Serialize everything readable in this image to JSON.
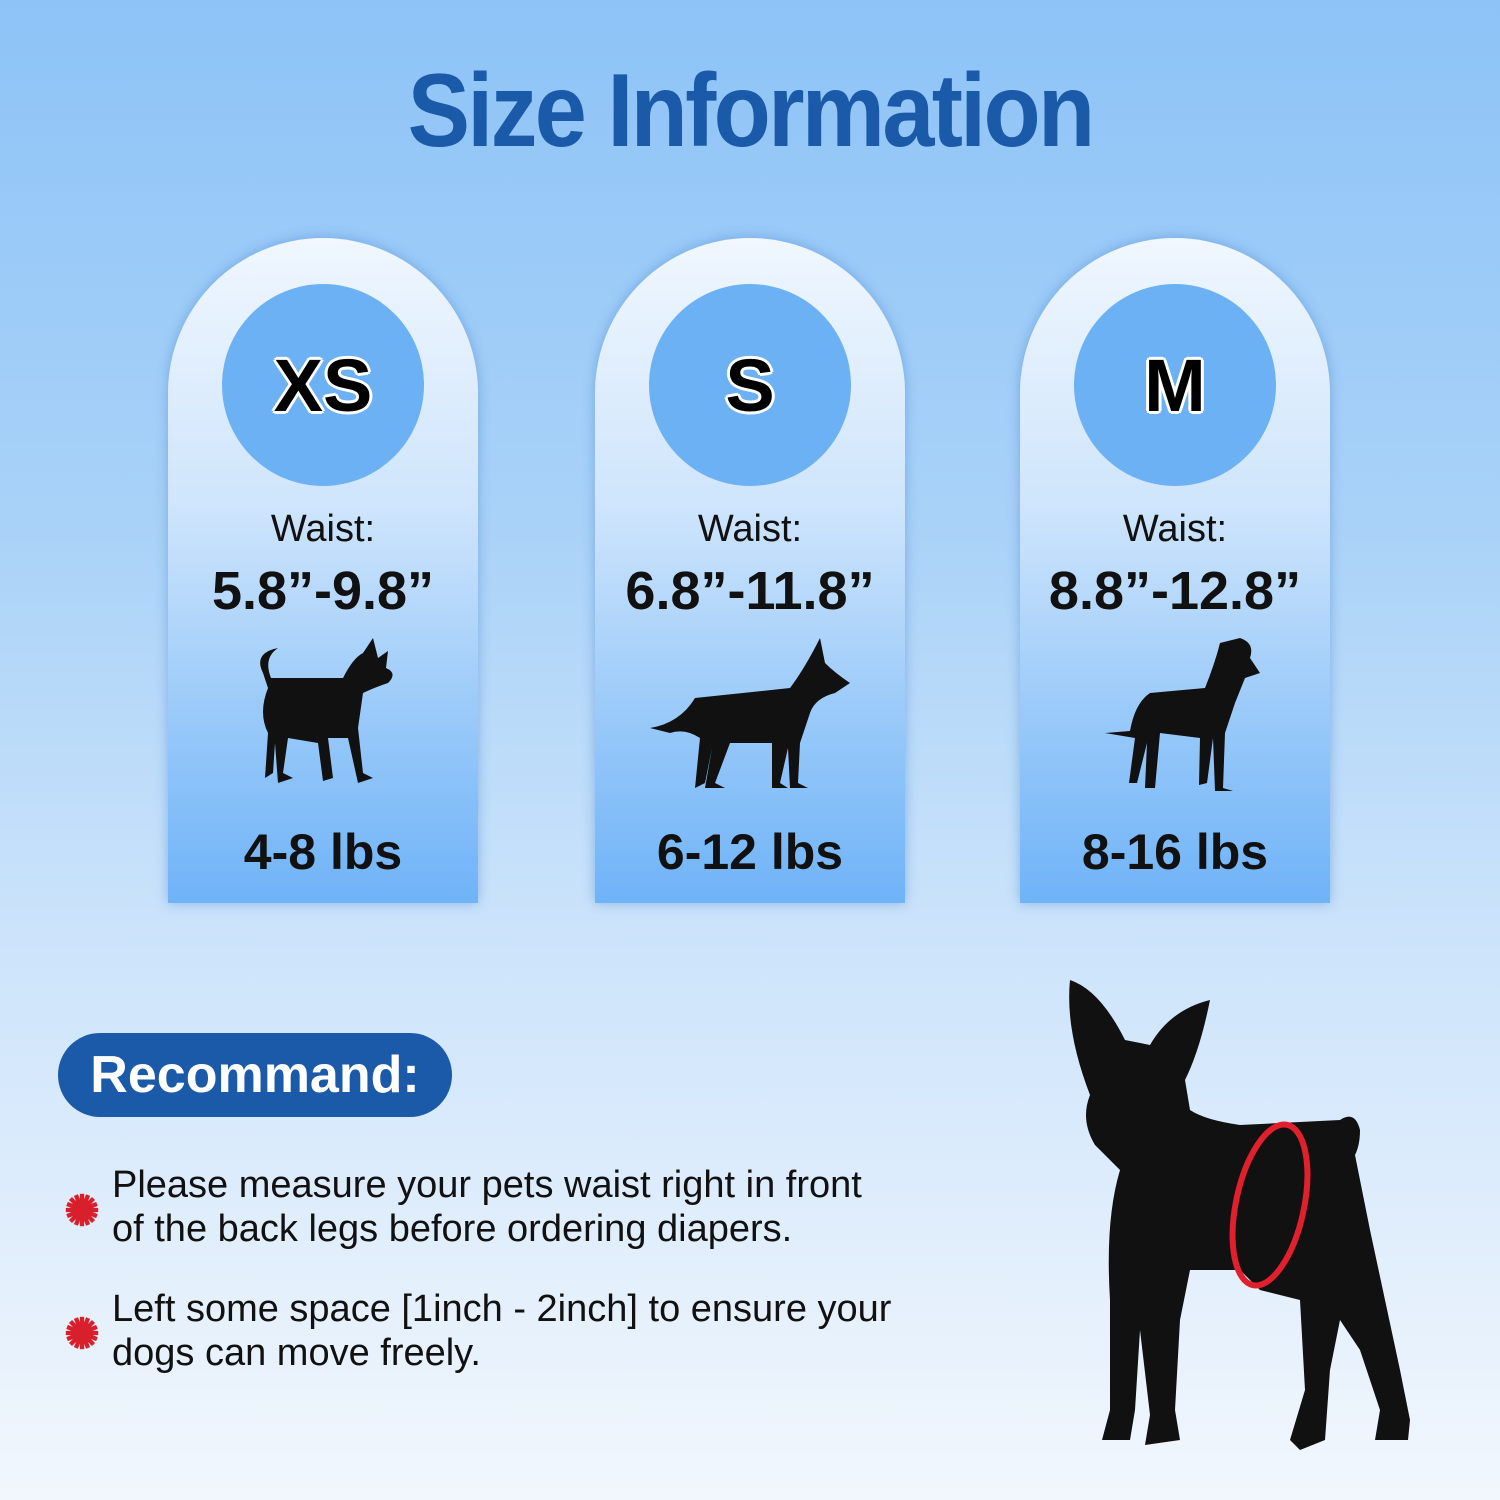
{
  "title": "Size Information",
  "sizes": [
    {
      "label": "XS",
      "waist_label": "Waist:",
      "waist": "5.8”-9.8”",
      "weight": "4-8 lbs"
    },
    {
      "label": "S",
      "waist_label": "Waist:",
      "waist": "6.8”-11.8”",
      "weight": "6-12 lbs"
    },
    {
      "label": "M",
      "waist_label": "Waist:",
      "waist": "8.8”-12.8”",
      "weight": "8-16 lbs"
    }
  ],
  "recommend": {
    "heading": "Recommand:",
    "items": [
      {
        "line1": "Please measure your pets waist right in front",
        "line2": "of the back legs before ordering diapers."
      },
      {
        "line1": "Left some space [1inch - 2inch] to ensure your",
        "line2": "dogs can move freely."
      }
    ]
  },
  "colors": {
    "title": "#1a5aa8",
    "circle": "#6cb1f4",
    "bullet": "#d8202c",
    "waist_ring": "#e0202c"
  },
  "icons": [
    "chihuahua-silhouette",
    "shepherd-silhouette",
    "great-dane-silhouette",
    "flower-bullet-icon",
    "dog-waist-measure-illustration"
  ]
}
